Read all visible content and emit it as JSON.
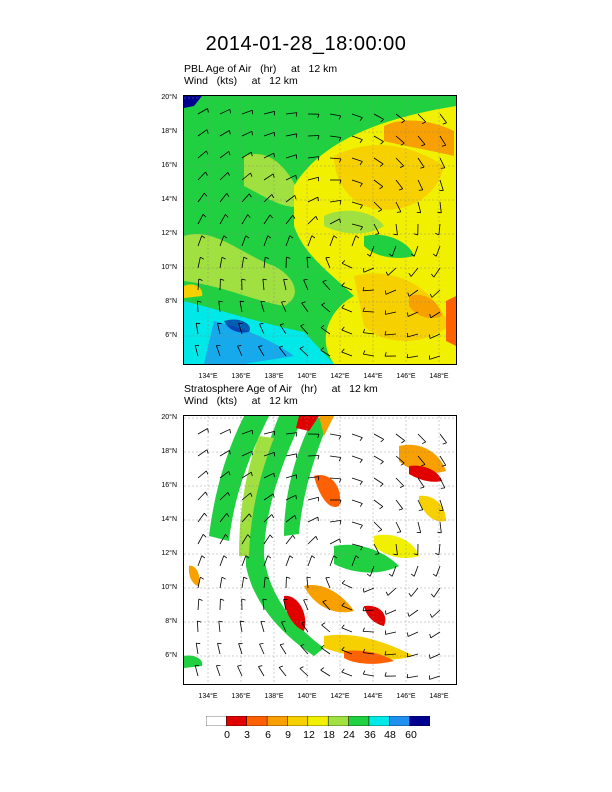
{
  "title": "2014-01-28_18:00:00",
  "panels": [
    {
      "line1": "PBL Age of Air   (hr)     at   12 km",
      "line2": "Wind   (kts)     at   12 km"
    },
    {
      "line1": "Stratosphere Age of Air   (hr)     at   12 km",
      "line2": "Wind   (kts)     at   12 km"
    }
  ],
  "lat_labels": [
    "20°N",
    "18°N",
    "16°N",
    "14°N",
    "12°N",
    "10°N",
    "8°N",
    "6°N"
  ],
  "lon_labels": [
    "134°E",
    "136°E",
    "138°E",
    "140°E",
    "142°E",
    "144°E",
    "146°E",
    "148°E"
  ],
  "colorbar": {
    "labels": [
      "0",
      "3",
      "6",
      "9",
      "12",
      "18",
      "24",
      "36",
      "48",
      "60"
    ],
    "colors": [
      "#ffffff",
      "#e00000",
      "#ff6000",
      "#f7a000",
      "#f7d000",
      "#f0f000",
      "#a0e040",
      "#20d040",
      "#00e8e8",
      "#2090f0",
      "#000090"
    ]
  }
}
